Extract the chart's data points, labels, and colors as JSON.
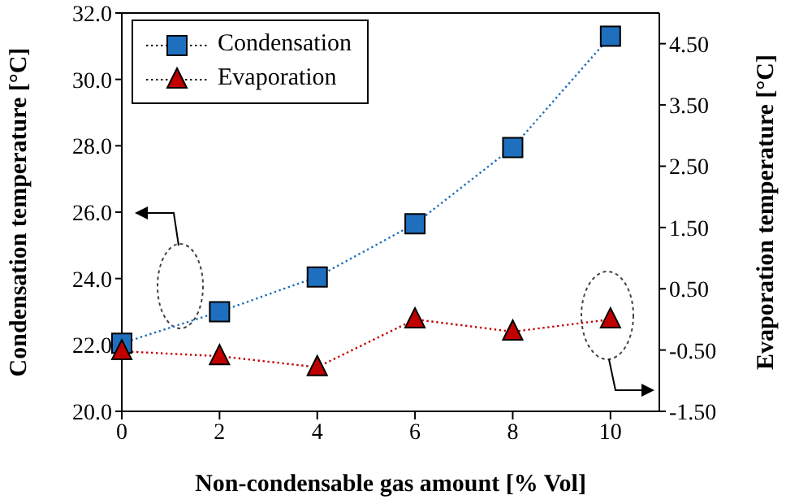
{
  "chart_data": {
    "type": "line",
    "xlabel": "Non-condensable gas amount [% Vol]",
    "ylabel": "Condensation temperature [°C]",
    "y2label": "Evaporation temperature [°C]",
    "x": [
      0,
      2,
      4,
      6,
      8,
      10
    ],
    "series": [
      {
        "name": "Condensation",
        "color": "#1f6fbf",
        "marker": "square",
        "values": [
          22.05,
          23.0,
          24.05,
          25.65,
          27.95,
          31.3
        ]
      },
      {
        "name": "Evaporation",
        "color": "#c00000",
        "marker": "triangle",
        "axis": "y2",
        "values": [
          -0.52,
          -0.6,
          -0.78,
          0.0,
          -0.2,
          0.0
        ]
      }
    ],
    "xlim": [
      0,
      11
    ],
    "xticks": [
      0,
      2,
      4,
      6,
      8,
      10
    ],
    "ylim": [
      20,
      32
    ],
    "yticks": [
      {
        "value": 20,
        "label": "20.0"
      },
      {
        "value": 22,
        "label": "22.0"
      },
      {
        "value": 24,
        "label": "24.0"
      },
      {
        "value": 26,
        "label": "26.0"
      },
      {
        "value": 28,
        "label": "28.0"
      },
      {
        "value": 30,
        "label": "30.0"
      },
      {
        "value": 32,
        "label": "32.0"
      }
    ],
    "y2lim": [
      -1.5,
      5.0
    ],
    "y2ticks": [
      {
        "value": -1.5,
        "label": "-1.50"
      },
      {
        "value": -0.5,
        "label": "-0.50"
      },
      {
        "value": 0.5,
        "label": "0.50"
      },
      {
        "value": 1.5,
        "label": "1.50"
      },
      {
        "value": 2.5,
        "label": "2.50"
      },
      {
        "value": 3.5,
        "label": "3.50"
      },
      {
        "value": 4.5,
        "label": "4.50"
      }
    ],
    "grid": false,
    "legend": "top left",
    "line_style": "dotted"
  }
}
